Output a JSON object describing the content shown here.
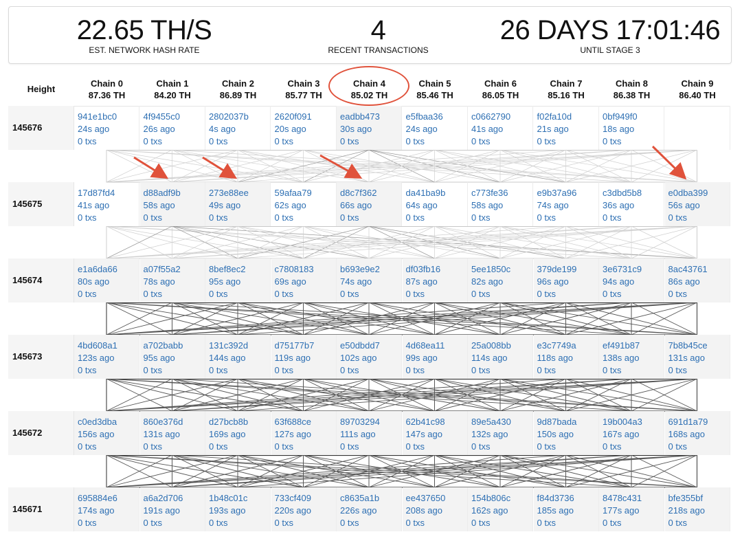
{
  "stats": {
    "hash_rate_value": "22.65 TH/S",
    "hash_rate_label": "EST. NETWORK HASH RATE",
    "recent_tx_value": "4",
    "recent_tx_label": "RECENT TRANSACTIONS",
    "countdown_value": "26 DAYS 17:01:46",
    "countdown_label": "UNTIL STAGE 3"
  },
  "table": {
    "height_header": "Height",
    "chains": [
      {
        "name": "Chain 0",
        "rate": "87.36 TH"
      },
      {
        "name": "Chain 1",
        "rate": "84.20 TH"
      },
      {
        "name": "Chain 2",
        "rate": "86.89 TH"
      },
      {
        "name": "Chain 3",
        "rate": "85.77 TH"
      },
      {
        "name": "Chain 4",
        "rate": "85.02 TH"
      },
      {
        "name": "Chain 5",
        "rate": "85.46 TH"
      },
      {
        "name": "Chain 6",
        "rate": "86.05 TH"
      },
      {
        "name": "Chain 7",
        "rate": "85.16 TH"
      },
      {
        "name": "Chain 8",
        "rate": "86.38 TH"
      },
      {
        "name": "Chain 9",
        "rate": "86.40 TH"
      }
    ],
    "rows": [
      {
        "height": "145676",
        "blocks": [
          {
            "hash": "941e1bc0",
            "age": "24s ago",
            "txs": "0 txs"
          },
          {
            "hash": "4f9455c0",
            "age": "26s ago",
            "txs": "0 txs"
          },
          {
            "hash": "2802037b",
            "age": "4s ago",
            "txs": "0 txs"
          },
          {
            "hash": "2620f091",
            "age": "20s ago",
            "txs": "0 txs"
          },
          {
            "hash": "eadbb473",
            "age": "30s ago",
            "txs": "0 txs"
          },
          {
            "hash": "e5fbaa36",
            "age": "24s ago",
            "txs": "0 txs"
          },
          {
            "hash": "c0662790",
            "age": "41s ago",
            "txs": "0 txs"
          },
          {
            "hash": "f02fa10d",
            "age": "21s ago",
            "txs": "0 txs"
          },
          {
            "hash": "0bf949f0",
            "age": "18s ago",
            "txs": "0 txs"
          },
          {
            "hash": "",
            "age": "",
            "txs": ""
          }
        ]
      },
      {
        "height": "145675",
        "blocks": [
          {
            "hash": "17d87fd4",
            "age": "41s ago",
            "txs": "0 txs"
          },
          {
            "hash": "d88adf9b",
            "age": "58s ago",
            "txs": "0 txs"
          },
          {
            "hash": "273e88ee",
            "age": "49s ago",
            "txs": "0 txs"
          },
          {
            "hash": "59afaa79",
            "age": "62s ago",
            "txs": "0 txs"
          },
          {
            "hash": "d8c7f362",
            "age": "66s ago",
            "txs": "0 txs"
          },
          {
            "hash": "da41ba9b",
            "age": "64s ago",
            "txs": "0 txs"
          },
          {
            "hash": "c773fe36",
            "age": "58s ago",
            "txs": "0 txs"
          },
          {
            "hash": "e9b37a96",
            "age": "74s ago",
            "txs": "0 txs"
          },
          {
            "hash": "c3dbd5b8",
            "age": "36s ago",
            "txs": "0 txs"
          },
          {
            "hash": "e0dba399",
            "age": "56s ago",
            "txs": "0 txs"
          }
        ]
      },
      {
        "height": "145674",
        "blocks": [
          {
            "hash": "e1a6da66",
            "age": "80s ago",
            "txs": "0 txs"
          },
          {
            "hash": "a07f55a2",
            "age": "78s ago",
            "txs": "0 txs"
          },
          {
            "hash": "8bef8ec2",
            "age": "95s ago",
            "txs": "0 txs"
          },
          {
            "hash": "c7808183",
            "age": "69s ago",
            "txs": "0 txs"
          },
          {
            "hash": "b693e9e2",
            "age": "74s ago",
            "txs": "0 txs"
          },
          {
            "hash": "df03fb16",
            "age": "87s ago",
            "txs": "0 txs"
          },
          {
            "hash": "5ee1850c",
            "age": "82s ago",
            "txs": "0 txs"
          },
          {
            "hash": "379de199",
            "age": "96s ago",
            "txs": "0 txs"
          },
          {
            "hash": "3e6731c9",
            "age": "94s ago",
            "txs": "0 txs"
          },
          {
            "hash": "8ac43761",
            "age": "86s ago",
            "txs": "0 txs"
          }
        ]
      },
      {
        "height": "145673",
        "blocks": [
          {
            "hash": "4bd608a1",
            "age": "123s ago",
            "txs": "0 txs"
          },
          {
            "hash": "a702babb",
            "age": "95s ago",
            "txs": "0 txs"
          },
          {
            "hash": "131c392d",
            "age": "144s ago",
            "txs": "0 txs"
          },
          {
            "hash": "d75177b7",
            "age": "119s ago",
            "txs": "0 txs"
          },
          {
            "hash": "e50dbdd7",
            "age": "102s ago",
            "txs": "0 txs"
          },
          {
            "hash": "4d68ea11",
            "age": "99s ago",
            "txs": "0 txs"
          },
          {
            "hash": "25a008bb",
            "age": "114s ago",
            "txs": "0 txs"
          },
          {
            "hash": "e3c7749a",
            "age": "118s ago",
            "txs": "0 txs"
          },
          {
            "hash": "ef491b87",
            "age": "138s ago",
            "txs": "0 txs"
          },
          {
            "hash": "7b8b45ce",
            "age": "131s ago",
            "txs": "0 txs"
          }
        ]
      },
      {
        "height": "145672",
        "blocks": [
          {
            "hash": "c0ed3dba",
            "age": "156s ago",
            "txs": "0 txs"
          },
          {
            "hash": "860e376d",
            "age": "131s ago",
            "txs": "0 txs"
          },
          {
            "hash": "d27bcb8b",
            "age": "169s ago",
            "txs": "0 txs"
          },
          {
            "hash": "63f688ce",
            "age": "127s ago",
            "txs": "0 txs"
          },
          {
            "hash": "89703294",
            "age": "111s ago",
            "txs": "0 txs"
          },
          {
            "hash": "62b41c98",
            "age": "147s ago",
            "txs": "0 txs"
          },
          {
            "hash": "89e5a430",
            "age": "132s ago",
            "txs": "0 txs"
          },
          {
            "hash": "9d87bada",
            "age": "150s ago",
            "txs": "0 txs"
          },
          {
            "hash": "19b004a3",
            "age": "167s ago",
            "txs": "0 txs"
          },
          {
            "hash": "691d1a79",
            "age": "168s ago",
            "txs": "0 txs"
          }
        ]
      },
      {
        "height": "145671",
        "blocks": [
          {
            "hash": "695884e6",
            "age": "174s ago",
            "txs": "0 txs"
          },
          {
            "hash": "a6a2d706",
            "age": "191s ago",
            "txs": "0 txs"
          },
          {
            "hash": "1b48c01c",
            "age": "193s ago",
            "txs": "0 txs"
          },
          {
            "hash": "733cf409",
            "age": "220s ago",
            "txs": "0 txs"
          },
          {
            "hash": "c8635a1b",
            "age": "226s ago",
            "txs": "0 txs"
          },
          {
            "hash": "ee437650",
            "age": "208s ago",
            "txs": "0 txs"
          },
          {
            "hash": "154b806c",
            "age": "162s ago",
            "txs": "0 txs"
          },
          {
            "hash": "f84d3736",
            "age": "185s ago",
            "txs": "0 txs"
          },
          {
            "hash": "8478c431",
            "age": "177s ago",
            "txs": "0 txs"
          },
          {
            "hash": "bfe355bf",
            "age": "218s ago",
            "txs": "0 txs"
          }
        ]
      }
    ]
  },
  "colors": {
    "link": "#2d6fb3",
    "annotation": "#e0523b"
  }
}
